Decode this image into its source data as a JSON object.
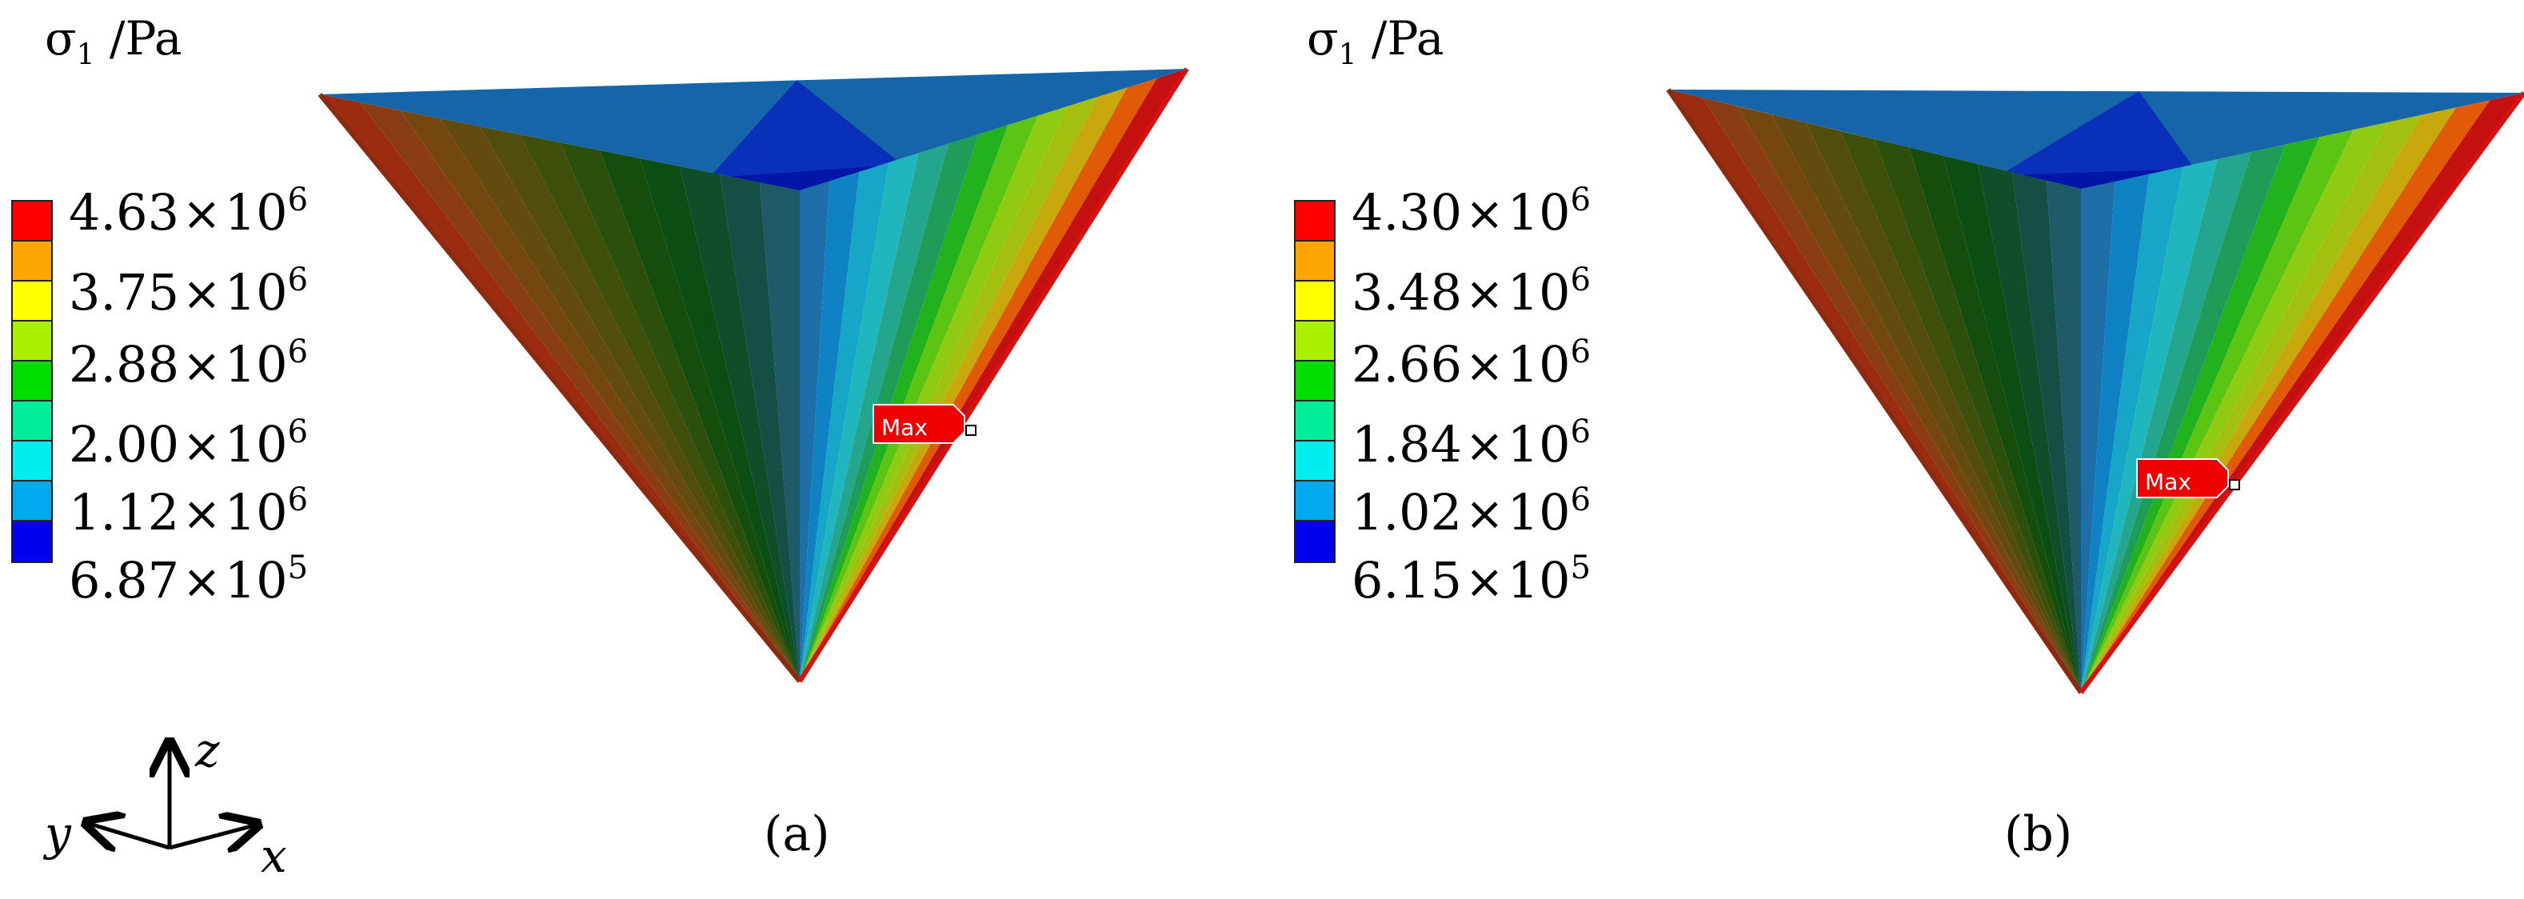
{
  "colors": {
    "legend": [
      "#ff0000",
      "#ffa500",
      "#ffff00",
      "#aaee00",
      "#00dd00",
      "#00ee99",
      "#00eeee",
      "#00aaee",
      "#0000ee"
    ],
    "marker": "#ee0000"
  },
  "panels": [
    {
      "caption": "(a)",
      "title": {
        "symbol": "σ",
        "sub": "1",
        "unit": " /Pa"
      },
      "ticks": [
        {
          "mant": "4.63",
          "exp": "6"
        },
        {
          "mant": "3.75",
          "exp": "6"
        },
        {
          "mant": "2.88",
          "exp": "6"
        },
        {
          "mant": "2.00",
          "exp": "6"
        },
        {
          "mant": "1.12",
          "exp": "6"
        },
        {
          "mant": "6.87",
          "exp": "5"
        }
      ],
      "marker": "Max"
    },
    {
      "caption": "(b)",
      "title": {
        "symbol": "σ",
        "sub": "1",
        "unit": " /Pa"
      },
      "ticks": [
        {
          "mant": "4.30",
          "exp": "6"
        },
        {
          "mant": "3.48",
          "exp": "6"
        },
        {
          "mant": "2.66",
          "exp": "6"
        },
        {
          "mant": "1.84",
          "exp": "6"
        },
        {
          "mant": "1.02",
          "exp": "6"
        },
        {
          "mant": "6.15",
          "exp": "5"
        }
      ],
      "marker": "Max"
    }
  ],
  "tick_times": "×",
  "tick_base": "10",
  "axes": {
    "z": "z",
    "y": "y",
    "x": "x"
  }
}
